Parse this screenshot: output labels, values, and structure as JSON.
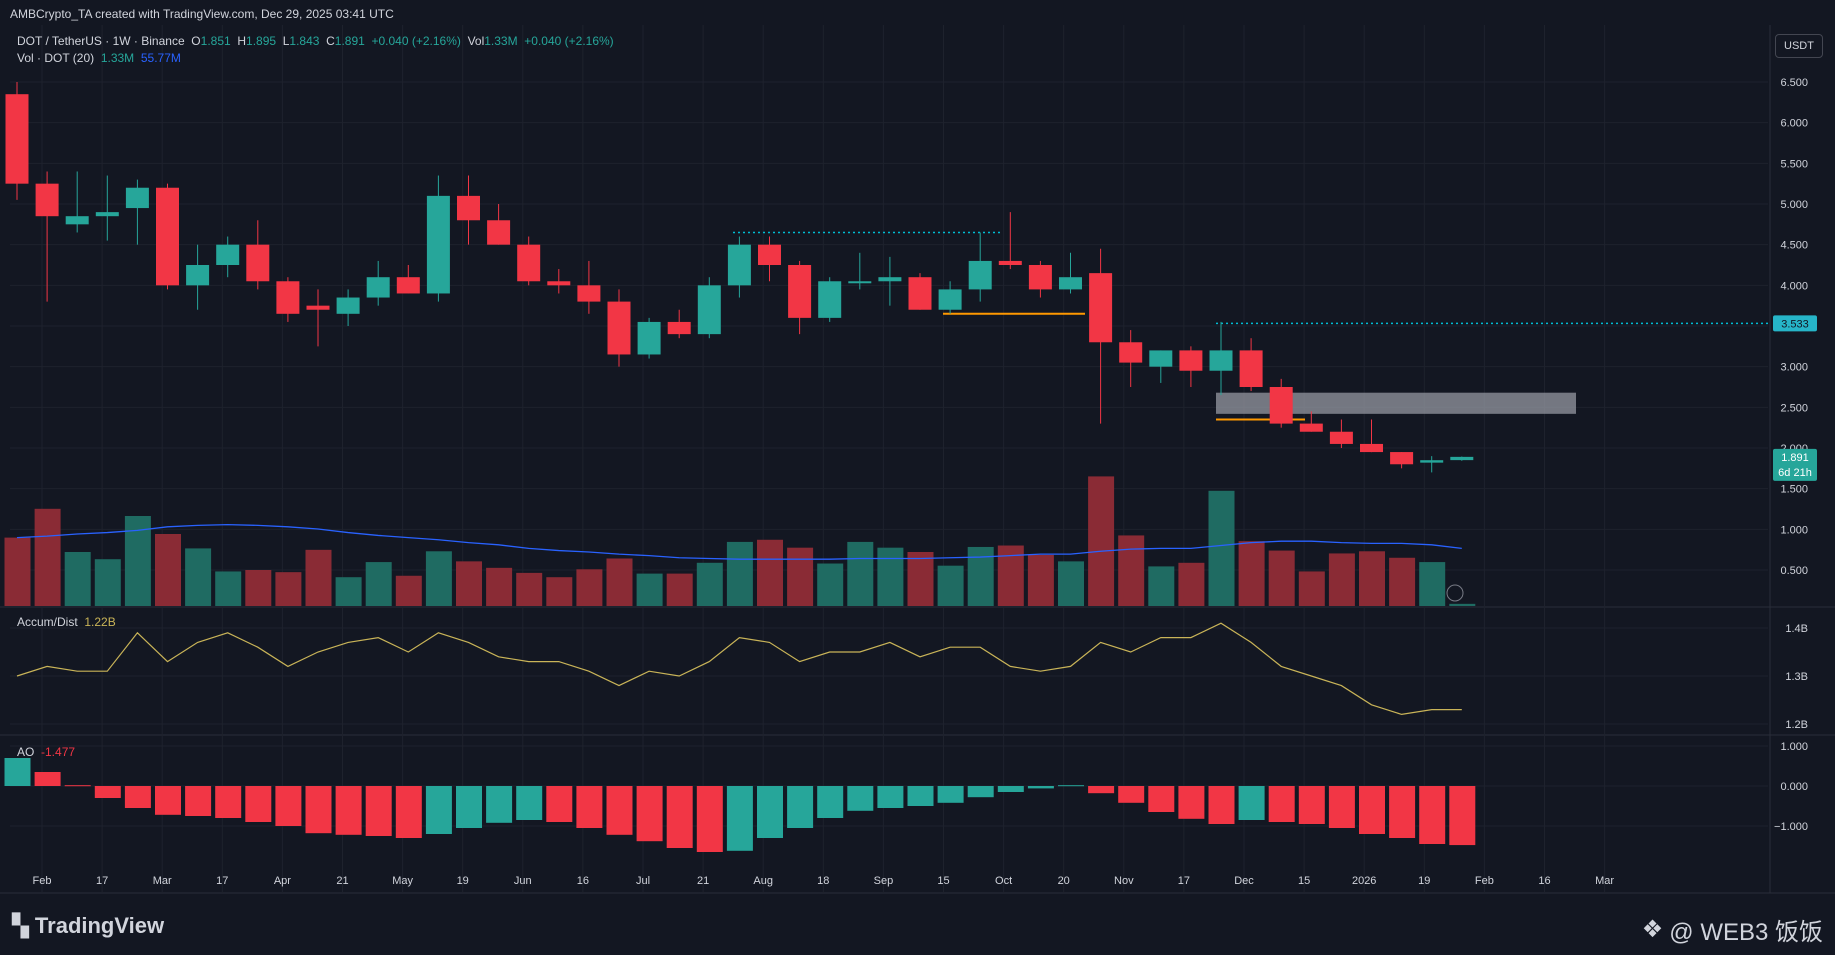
{
  "header": {
    "attribution": "AMBCrypto_TA created with TradingView.com, Dec 29, 2025 03:41 UTC",
    "symbol": "DOT / TetherUS · 1W · Binance",
    "o_label": "O",
    "o_val": "1.851",
    "h_label": "H",
    "h_val": "1.895",
    "l_label": "L",
    "l_val": "1.843",
    "c_label": "C",
    "c_val": "1.891",
    "change": "+0.040 (+2.16%)",
    "vol_label": "Vol",
    "vol_val": "1.33M",
    "vol_change": "+0.040 (+2.16%)",
    "vol_ind_label": "Vol · DOT (20)",
    "vol_ind_v1": "1.33M",
    "vol_ind_v2": "55.77M"
  },
  "currency_button": "USDT",
  "price_axis": {
    "ticks": [
      "6.500",
      "6.000",
      "5.500",
      "5.000",
      "4.500",
      "4.000",
      "3.500",
      "3.000",
      "2.500",
      "2.000",
      "1.500",
      "1.000",
      "0.500"
    ],
    "marker_level": "3.533",
    "last_price": "1.891",
    "countdown": "6d 21h"
  },
  "accum_dist": {
    "label": "Accum/Dist",
    "value": "1.22B",
    "ticks": [
      "1.4B",
      "1.3B",
      "1.2B"
    ]
  },
  "ao": {
    "label": "AO",
    "value": "-1.477",
    "ticks": [
      "1.000",
      "0.000",
      "−1.000"
    ]
  },
  "time_axis": [
    "Feb",
    "17",
    "Mar",
    "17",
    "Apr",
    "21",
    "May",
    "19",
    "Jun",
    "16",
    "Jul",
    "21",
    "Aug",
    "18",
    "Sep",
    "15",
    "Oct",
    "20",
    "Nov",
    "17",
    "Dec",
    "15",
    "2026",
    "19",
    "Feb",
    "16",
    "Mar"
  ],
  "brand": "TradingView",
  "watermark": "@ WEB3 饭饭",
  "colors": {
    "bull": "#26a69a",
    "bear": "#f23645",
    "volma": "#2962ff",
    "ad": "#c9b458",
    "zone": "#9598a1",
    "level": "#00bcd4",
    "trend": "#ff9800"
  },
  "chart_data": {
    "type": "candlestick",
    "interval": "1W",
    "symbol": "DOT/USDT",
    "candles": [
      {
        "o": 6.35,
        "h": 6.5,
        "l": 5.05,
        "c": 5.25,
        "v": 0.95
      },
      {
        "o": 5.25,
        "h": 5.4,
        "l": 3.8,
        "c": 4.85,
        "v": 1.35
      },
      {
        "o": 4.75,
        "h": 5.4,
        "l": 4.65,
        "c": 4.85,
        "v": 0.75
      },
      {
        "o": 4.85,
        "h": 5.35,
        "l": 4.55,
        "c": 4.9,
        "v": 0.65
      },
      {
        "o": 4.95,
        "h": 5.3,
        "l": 4.5,
        "c": 5.2,
        "v": 1.25
      },
      {
        "o": 5.2,
        "h": 5.25,
        "l": 3.95,
        "c": 4.0,
        "v": 1.0
      },
      {
        "o": 4.0,
        "h": 4.5,
        "l": 3.7,
        "c": 4.25,
        "v": 0.8
      },
      {
        "o": 4.25,
        "h": 4.6,
        "l": 4.1,
        "c": 4.5,
        "v": 0.48
      },
      {
        "o": 4.5,
        "h": 4.8,
        "l": 3.95,
        "c": 4.05,
        "v": 0.5
      },
      {
        "o": 4.05,
        "h": 4.1,
        "l": 3.55,
        "c": 3.65,
        "v": 0.47
      },
      {
        "o": 3.75,
        "h": 3.95,
        "l": 3.25,
        "c": 3.7,
        "v": 0.78
      },
      {
        "o": 3.65,
        "h": 3.95,
        "l": 3.5,
        "c": 3.85,
        "v": 0.4
      },
      {
        "o": 3.85,
        "h": 4.3,
        "l": 3.75,
        "c": 4.1,
        "v": 0.61
      },
      {
        "o": 4.1,
        "h": 4.25,
        "l": 3.9,
        "c": 3.9,
        "v": 0.42
      },
      {
        "o": 3.9,
        "h": 5.35,
        "l": 3.8,
        "c": 5.1,
        "v": 0.76
      },
      {
        "o": 5.1,
        "h": 5.35,
        "l": 4.5,
        "c": 4.8,
        "v": 0.62
      },
      {
        "o": 4.8,
        "h": 5.0,
        "l": 4.5,
        "c": 4.5,
        "v": 0.53
      },
      {
        "o": 4.5,
        "h": 4.6,
        "l": 4.0,
        "c": 4.05,
        "v": 0.46
      },
      {
        "o": 4.05,
        "h": 4.2,
        "l": 3.9,
        "c": 4.0,
        "v": 0.4
      },
      {
        "o": 4.0,
        "h": 4.3,
        "l": 3.65,
        "c": 3.8,
        "v": 0.51
      },
      {
        "o": 3.8,
        "h": 3.95,
        "l": 3.0,
        "c": 3.15,
        "v": 0.66
      },
      {
        "o": 3.15,
        "h": 3.6,
        "l": 3.1,
        "c": 3.55,
        "v": 0.45
      },
      {
        "o": 3.55,
        "h": 3.7,
        "l": 3.35,
        "c": 3.4,
        "v": 0.45
      },
      {
        "o": 3.4,
        "h": 4.1,
        "l": 3.35,
        "c": 4.0,
        "v": 0.6
      },
      {
        "o": 4.0,
        "h": 4.6,
        "l": 3.85,
        "c": 4.5,
        "v": 0.89
      },
      {
        "o": 4.5,
        "h": 4.6,
        "l": 4.05,
        "c": 4.25,
        "v": 0.92
      },
      {
        "o": 4.25,
        "h": 4.3,
        "l": 3.4,
        "c": 3.6,
        "v": 0.81
      },
      {
        "o": 3.6,
        "h": 4.1,
        "l": 3.55,
        "c": 4.05,
        "v": 0.59
      },
      {
        "o": 4.05,
        "h": 4.4,
        "l": 3.95,
        "c": 4.05,
        "v": 0.89
      },
      {
        "o": 4.05,
        "h": 4.35,
        "l": 3.75,
        "c": 4.1,
        "v": 0.81
      },
      {
        "o": 4.1,
        "h": 4.15,
        "l": 3.7,
        "c": 3.7,
        "v": 0.75
      },
      {
        "o": 3.7,
        "h": 4.05,
        "l": 3.65,
        "c": 3.95,
        "v": 0.56
      },
      {
        "o": 3.95,
        "h": 4.65,
        "l": 3.8,
        "c": 4.3,
        "v": 0.82
      },
      {
        "o": 4.3,
        "h": 4.9,
        "l": 4.2,
        "c": 4.25,
        "v": 0.84
      },
      {
        "o": 4.25,
        "h": 4.3,
        "l": 3.85,
        "c": 3.95,
        "v": 0.71
      },
      {
        "o": 3.95,
        "h": 4.4,
        "l": 3.9,
        "c": 4.1,
        "v": 0.62
      },
      {
        "o": 4.15,
        "h": 4.45,
        "l": 2.3,
        "c": 3.3,
        "v": 1.8
      },
      {
        "o": 3.3,
        "h": 3.45,
        "l": 2.75,
        "c": 3.05,
        "v": 0.98
      },
      {
        "o": 3.0,
        "h": 3.2,
        "l": 2.8,
        "c": 3.2,
        "v": 0.55
      },
      {
        "o": 3.2,
        "h": 3.25,
        "l": 2.75,
        "c": 2.95,
        "v": 0.6
      },
      {
        "o": 2.95,
        "h": 3.55,
        "l": 2.65,
        "c": 3.2,
        "v": 1.6
      },
      {
        "o": 3.2,
        "h": 3.35,
        "l": 2.7,
        "c": 2.75,
        "v": 0.9
      },
      {
        "o": 2.75,
        "h": 2.85,
        "l": 2.25,
        "c": 2.3,
        "v": 0.77
      },
      {
        "o": 2.3,
        "h": 2.45,
        "l": 2.2,
        "c": 2.2,
        "v": 0.48
      },
      {
        "o": 2.2,
        "h": 2.35,
        "l": 2.0,
        "c": 2.05,
        "v": 0.73
      },
      {
        "o": 2.05,
        "h": 2.35,
        "l": 1.95,
        "c": 1.95,
        "v": 0.76
      },
      {
        "o": 1.95,
        "h": 1.95,
        "l": 1.75,
        "c": 1.8,
        "v": 0.67
      },
      {
        "o": 1.82,
        "h": 1.9,
        "l": 1.7,
        "c": 1.85,
        "v": 0.61
      },
      {
        "o": 1.851,
        "h": 1.895,
        "l": 1.843,
        "c": 1.891,
        "v": 0.03
      }
    ],
    "volume_ma": [
      0.95,
      0.97,
      1.0,
      1.02,
      1.05,
      1.1,
      1.12,
      1.13,
      1.12,
      1.1,
      1.07,
      1.02,
      0.98,
      0.95,
      0.92,
      0.88,
      0.85,
      0.8,
      0.77,
      0.75,
      0.72,
      0.7,
      0.67,
      0.66,
      0.65,
      0.65,
      0.65,
      0.65,
      0.66,
      0.66,
      0.66,
      0.67,
      0.68,
      0.7,
      0.72,
      0.72,
      0.76,
      0.79,
      0.8,
      0.8,
      0.84,
      0.88,
      0.9,
      0.9,
      0.88,
      0.87,
      0.87,
      0.85,
      0.8
    ],
    "accum_dist": [
      1.3,
      1.32,
      1.31,
      1.31,
      1.39,
      1.33,
      1.37,
      1.39,
      1.36,
      1.32,
      1.35,
      1.37,
      1.38,
      1.35,
      1.39,
      1.37,
      1.34,
      1.33,
      1.33,
      1.31,
      1.28,
      1.31,
      1.3,
      1.33,
      1.38,
      1.37,
      1.33,
      1.35,
      1.35,
      1.37,
      1.34,
      1.36,
      1.36,
      1.32,
      1.31,
      1.32,
      1.37,
      1.35,
      1.38,
      1.38,
      1.41,
      1.37,
      1.32,
      1.3,
      1.28,
      1.24,
      1.22,
      1.23,
      1.23
    ],
    "ao": [
      0.7,
      0.35,
      0.02,
      -0.3,
      -0.55,
      -0.72,
      -0.75,
      -0.8,
      -0.9,
      -1.0,
      -1.18,
      -1.22,
      -1.25,
      -1.3,
      -1.2,
      -1.05,
      -0.92,
      -0.85,
      -0.9,
      -1.05,
      -1.22,
      -1.38,
      -1.55,
      -1.65,
      -1.62,
      -1.3,
      -1.05,
      -0.8,
      -0.62,
      -0.55,
      -0.5,
      -0.42,
      -0.28,
      -0.15,
      -0.06,
      0.02,
      -0.18,
      -0.42,
      -0.65,
      -0.82,
      -0.95,
      -0.85,
      -0.9,
      -0.95,
      -1.05,
      -1.2,
      -1.3,
      -1.45,
      -1.477
    ],
    "ao_colors": [
      "g",
      "r",
      "r",
      "r",
      "r",
      "r",
      "r",
      "r",
      "r",
      "r",
      "r",
      "r",
      "r",
      "r",
      "g",
      "g",
      "g",
      "g",
      "r",
      "r",
      "r",
      "r",
      "r",
      "r",
      "g",
      "g",
      "g",
      "g",
      "g",
      "g",
      "g",
      "g",
      "g",
      "g",
      "g",
      "g",
      "r",
      "r",
      "r",
      "r",
      "r",
      "g",
      "r",
      "r",
      "r",
      "r",
      "r",
      "r",
      "r"
    ],
    "annotations": {
      "resistance_dotted": 4.65,
      "support_orange_1": 3.65,
      "support_orange_2": 2.35,
      "zone_low": 2.42,
      "zone_high": 2.68,
      "level_marker": 3.533
    },
    "price_range": [
      0.5,
      6.5
    ],
    "ad_range": [
      1.2,
      1.4
    ],
    "ao_range": [
      -1.0,
      1.0
    ]
  }
}
